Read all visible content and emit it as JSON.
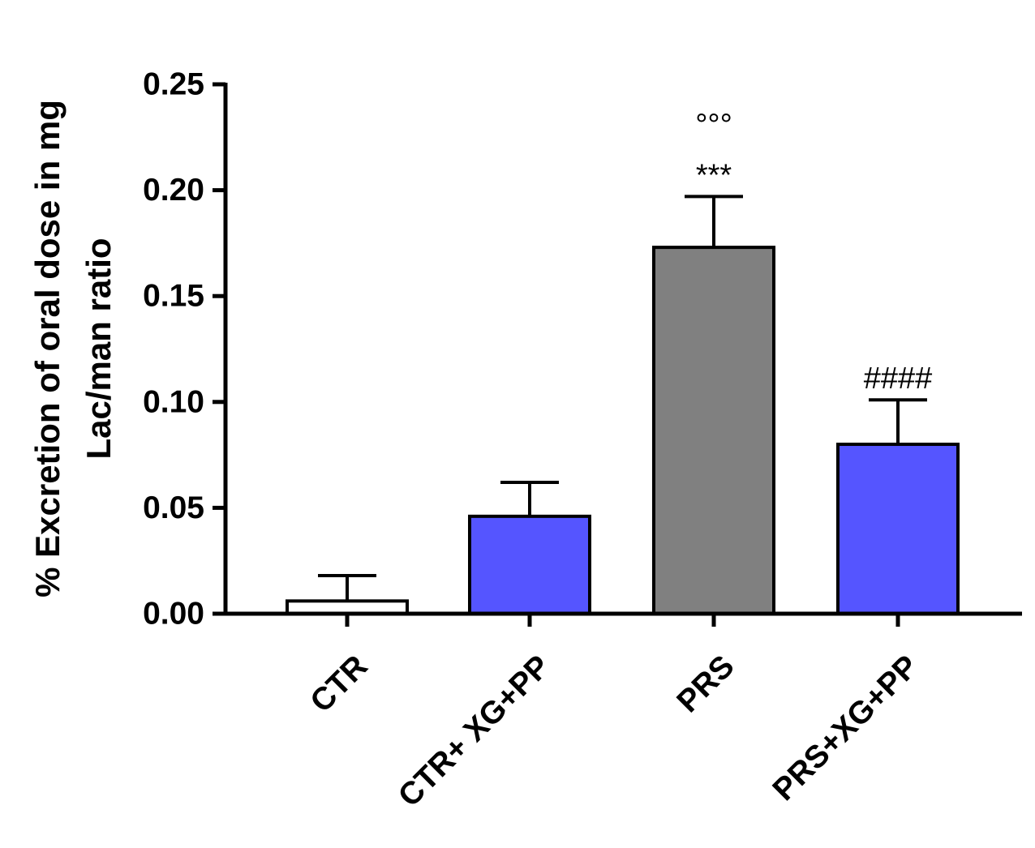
{
  "chart_data": {
    "type": "bar",
    "title": "",
    "xlabel": "",
    "ylabel_lines": [
      "% Excretion of oral dose in mg",
      "Lac/man ratio"
    ],
    "categories": [
      "CTR",
      "CTR+ XG+PP",
      "PRS",
      "PRS+XG+PP"
    ],
    "values": [
      0.006,
      0.046,
      0.173,
      0.08
    ],
    "errors": [
      0.012,
      0.016,
      0.024,
      0.021
    ],
    "colors": [
      "#ffffff",
      "#5555ff",
      "#808080",
      "#5555ff"
    ],
    "ylim": [
      0,
      0.25
    ],
    "yticks": [
      0.0,
      0.05,
      0.1,
      0.15,
      0.2,
      0.25
    ],
    "ytick_labels": [
      "0.00",
      "0.05",
      "0.10",
      "0.15",
      "0.20",
      "0.25"
    ],
    "grid": false,
    "annotations": [
      {
        "category": "PRS",
        "lines": [
          "°°°",
          "***"
        ]
      },
      {
        "category": "PRS+XG+PP",
        "lines": [
          "####"
        ]
      }
    ]
  }
}
